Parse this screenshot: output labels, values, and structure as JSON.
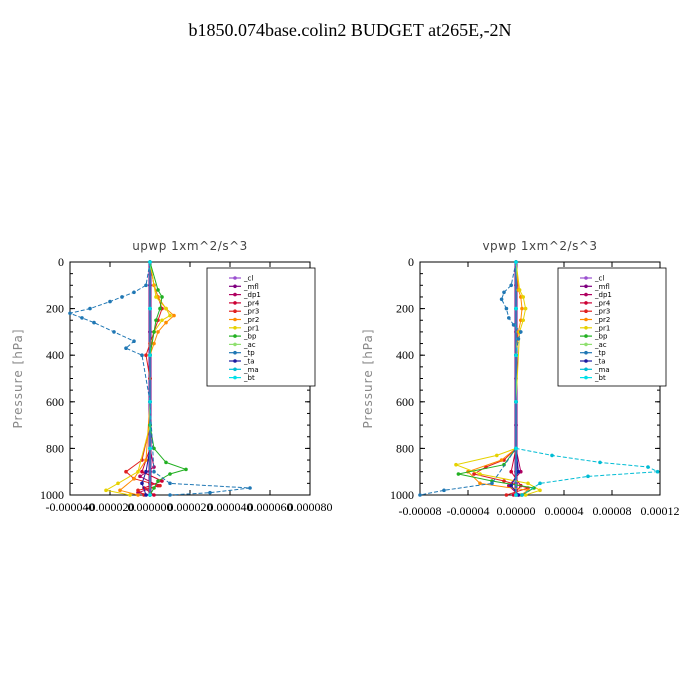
{
  "title": "b1850.074base.colin2  BUDGET at265E,-2N",
  "chart_data": [
    {
      "type": "line",
      "title": "upwp   1xm^2/s^3",
      "ylabel": "Pressure [hPa]",
      "xlabel": "",
      "xlim": [
        -4e-05,
        8e-05
      ],
      "ylim": [
        1000,
        0
      ],
      "xticks": [
        -4e-05,
        -2e-05,
        0.0,
        2e-05,
        4e-05,
        6e-05,
        8e-05
      ],
      "xtick_labels": [
        "-0.000040",
        "-0.000020",
        "0.000000",
        "0.000020",
        "0.000040",
        "0.000060",
        "0.000080"
      ],
      "yticks": [
        0,
        200,
        400,
        600,
        800,
        1000
      ],
      "ytick_labels": [
        "0",
        "200",
        "400",
        "600",
        "800",
        "1000"
      ],
      "legend_position": "upper-right",
      "series": [
        {
          "name": "_cl",
          "color": "#9a4fd0",
          "marker": "+",
          "y": [
            0,
            100,
            200,
            300,
            400,
            500,
            600,
            700,
            800,
            900,
            950,
            1000
          ],
          "x": [
            0,
            0,
            0,
            0,
            0,
            0,
            0,
            0,
            0,
            0,
            0,
            0
          ]
        },
        {
          "name": "_mfl",
          "color": "#800080",
          "marker": "◆",
          "y": [
            0,
            100,
            200,
            300,
            400,
            500,
            600,
            700,
            800,
            900,
            950,
            1000
          ],
          "x": [
            0,
            0,
            0,
            0,
            0,
            0,
            0,
            0,
            0,
            0,
            0,
            0
          ]
        },
        {
          "name": "_dp1",
          "color": "#b00060",
          "marker": "◆",
          "y": [
            0,
            200,
            400,
            600,
            800,
            880,
            920,
            960,
            990,
            1000
          ],
          "x": [
            0,
            0,
            0,
            0,
            0,
            2e-06,
            -5e-06,
            4e-06,
            -6e-06,
            0
          ]
        },
        {
          "name": "_pr4",
          "color": "#cc0033",
          "marker": "◆",
          "y": [
            0,
            200,
            400,
            600,
            800,
            900,
            940,
            970,
            1000
          ],
          "x": [
            0,
            0,
            0,
            0,
            0,
            -4e-06,
            6e-06,
            -3e-06,
            2e-06
          ]
        },
        {
          "name": "_pr3",
          "color": "#e02020",
          "marker": "✕",
          "y": [
            0,
            100,
            150,
            200,
            250,
            300,
            350,
            400,
            500,
            700,
            850,
            900,
            930,
            960,
            980,
            1000
          ],
          "x": [
            0,
            2e-06,
            4e-06,
            6e-06,
            4e-06,
            2e-06,
            0,
            -2e-06,
            0,
            0,
            -4e-06,
            -1.2e-05,
            -8e-06,
            5e-06,
            -6e-06,
            -3e-06
          ]
        },
        {
          "name": "_pr2",
          "color": "#ff8c00",
          "marker": "△",
          "y": [
            0,
            100,
            150,
            200,
            230,
            260,
            300,
            350,
            400,
            600,
            850,
            930,
            980,
            1000
          ],
          "x": [
            0,
            2e-06,
            4e-06,
            8e-06,
            1.2e-05,
            8e-06,
            4e-06,
            2e-06,
            0,
            0,
            -2e-06,
            -8e-06,
            -1.5e-05,
            -6e-06
          ]
        },
        {
          "name": "_pr1",
          "color": "#e6d200",
          "marker": "✕",
          "y": [
            0,
            150,
            200,
            230,
            250,
            300,
            400,
            700,
            900,
            950,
            980,
            1000
          ],
          "x": [
            0,
            3e-06,
            8e-06,
            1e-05,
            6e-06,
            2e-06,
            0,
            0,
            -6e-06,
            -1.6e-05,
            -2.2e-05,
            -1e-05
          ]
        },
        {
          "name": "_bp",
          "color": "#22b022",
          "marker": "✕",
          "y": [
            0,
            120,
            150,
            200,
            250,
            300,
            400,
            700,
            800,
            860,
            890,
            910,
            940,
            970,
            1000
          ],
          "x": [
            0,
            4e-06,
            6e-06,
            5e-06,
            3e-06,
            2e-06,
            0,
            0,
            2e-06,
            8e-06,
            1.8e-05,
            1e-05,
            4e-06,
            2e-06,
            0
          ]
        },
        {
          "name": "_ac",
          "color": "#90e070",
          "marker": "◆",
          "y": [
            0,
            200,
            400,
            600,
            800,
            1000
          ],
          "x": [
            0,
            0,
            0,
            0,
            0,
            0
          ]
        },
        {
          "name": "_tp",
          "color": "#1f77b4",
          "marker": "✕",
          "y": [
            0,
            100,
            130,
            150,
            170,
            200,
            220,
            240,
            260,
            300,
            340,
            370,
            400,
            600,
            900,
            950,
            970,
            990,
            1000
          ],
          "x": [
            0,
            -2e-06,
            -8e-06,
            -1.4e-05,
            -2e-05,
            -3e-05,
            -4e-05,
            -3.4e-05,
            -2.8e-05,
            -1.8e-05,
            -8e-06,
            -1.2e-05,
            -4e-06,
            0,
            2e-06,
            1e-05,
            5e-05,
            3e-05,
            1e-05
          ]
        },
        {
          "name": "_ta",
          "color": "#1a1aa0",
          "marker": "+",
          "y": [
            0,
            200,
            400,
            600,
            800,
            900,
            950,
            1000
          ],
          "x": [
            0,
            0,
            0,
            0,
            0,
            -2e-06,
            -4e-06,
            -2e-06
          ]
        },
        {
          "name": "_ma",
          "color": "#00bcd4",
          "marker": "–",
          "y": [
            0,
            200,
            400,
            600,
            800,
            1000
          ],
          "x": [
            0,
            0,
            0,
            0,
            0,
            0
          ]
        },
        {
          "name": "_bt",
          "color": "#00e0e8",
          "marker": "●",
          "y": [
            0,
            200,
            400,
            600,
            800,
            1000
          ],
          "x": [
            0,
            0,
            0,
            0,
            0,
            0
          ]
        }
      ]
    },
    {
      "type": "line",
      "title": "vpwp   1xm^2/s^3",
      "ylabel": "Pressure [hPa]",
      "xlabel": "",
      "xlim": [
        -8e-05,
        0.00012
      ],
      "ylim": [
        1000,
        0
      ],
      "xticks": [
        -8e-05,
        -4e-05,
        0.0,
        4e-05,
        8e-05,
        0.00012
      ],
      "xtick_labels": [
        "-0.00008",
        "-0.00004",
        "0.00000",
        "0.00004",
        "0.00008",
        "0.00012"
      ],
      "yticks": [
        0,
        200,
        400,
        600,
        800,
        1000
      ],
      "ytick_labels": [
        "0",
        "200",
        "400",
        "600",
        "800",
        "1000"
      ],
      "legend_position": "upper-right",
      "series": [
        {
          "name": "_cl",
          "color": "#9a4fd0",
          "marker": "+",
          "y": [
            0,
            200,
            400,
            600,
            800,
            1000
          ],
          "x": [
            0,
            0,
            0,
            0,
            0,
            0
          ]
        },
        {
          "name": "_mfl",
          "color": "#800080",
          "marker": "◆",
          "y": [
            0,
            100,
            200,
            300,
            400,
            500,
            600,
            700,
            800,
            900,
            950,
            1000
          ],
          "x": [
            0,
            0,
            0,
            0,
            0,
            0,
            0,
            0,
            0,
            0,
            0,
            0
          ]
        },
        {
          "name": "_dp1",
          "color": "#b00060",
          "marker": "◆",
          "y": [
            0,
            200,
            400,
            600,
            800,
            900,
            960,
            1000
          ],
          "x": [
            0,
            0,
            0,
            0,
            0,
            4e-06,
            -6e-06,
            2e-06
          ]
        },
        {
          "name": "_pr4",
          "color": "#cc0033",
          "marker": "◆",
          "y": [
            0,
            200,
            400,
            600,
            800,
            900,
            960,
            1000
          ],
          "x": [
            0,
            0,
            0,
            0,
            0,
            -4e-06,
            4e-06,
            -2e-06
          ]
        },
        {
          "name": "_pr3",
          "color": "#e02020",
          "marker": "✕",
          "y": [
            0,
            200,
            400,
            600,
            800,
            850,
            880,
            910,
            940,
            970,
            1000
          ],
          "x": [
            0,
            0,
            0,
            0,
            0,
            -1e-05,
            -2.5e-05,
            -3.5e-05,
            -1e-05,
            1e-05,
            -8e-06
          ]
        },
        {
          "name": "_pr2",
          "color": "#ff8c00",
          "marker": "△",
          "y": [
            0,
            120,
            150,
            200,
            250,
            300,
            400,
            600,
            800,
            850,
            900,
            950,
            980,
            1000
          ],
          "x": [
            0,
            2e-06,
            4e-06,
            5e-06,
            4e-06,
            2e-06,
            0,
            0,
            0,
            -1.2e-05,
            -4e-05,
            -3e-05,
            1e-05,
            4e-06
          ]
        },
        {
          "name": "_pr1",
          "color": "#e6d200",
          "marker": "✕",
          "y": [
            0,
            120,
            150,
            200,
            250,
            300,
            600,
            800,
            830,
            870,
            910,
            950,
            980,
            1000
          ],
          "x": [
            0,
            3e-06,
            6e-06,
            8e-06,
            6e-06,
            3e-06,
            0,
            0,
            -1.6e-05,
            -5e-05,
            -3e-05,
            1e-05,
            2e-05,
            8e-06
          ]
        },
        {
          "name": "_bp",
          "color": "#22b022",
          "marker": "✕",
          "y": [
            0,
            200,
            400,
            600,
            800,
            870,
            910,
            940,
            970,
            1000
          ],
          "x": [
            0,
            0,
            0,
            0,
            0,
            -1e-05,
            -4.8e-05,
            -2e-05,
            1.5e-05,
            5e-06
          ]
        },
        {
          "name": "_ac",
          "color": "#90e070",
          "marker": "◆",
          "y": [
            0,
            200,
            400,
            600,
            800,
            1000
          ],
          "x": [
            0,
            0,
            0,
            0,
            0,
            0
          ]
        },
        {
          "name": "_tp",
          "color": "#1f77b4",
          "marker": "✕",
          "y": [
            0,
            100,
            130,
            160,
            200,
            240,
            270,
            300,
            330,
            400,
            600,
            800,
            950,
            980,
            1000
          ],
          "x": [
            0,
            -4e-06,
            -1e-05,
            -1.2e-05,
            -8e-06,
            -6e-06,
            -2e-06,
            4e-06,
            2e-06,
            0,
            0,
            0,
            -2e-05,
            -6e-05,
            -8e-05
          ]
        },
        {
          "name": "_ta",
          "color": "#1a1aa0",
          "marker": "+",
          "y": [
            0,
            200,
            400,
            600,
            800,
            900,
            960,
            1000
          ],
          "x": [
            0,
            0,
            0,
            0,
            0,
            2e-06,
            -4e-06,
            2e-06
          ]
        },
        {
          "name": "_ma",
          "color": "#00bcd4",
          "marker": "–",
          "y": [
            0,
            200,
            400,
            600,
            800,
            830,
            860,
            880,
            900,
            920,
            950,
            1000
          ],
          "x": [
            0,
            0,
            0,
            0,
            0,
            3e-05,
            7e-05,
            0.00011,
            0.000118,
            6e-05,
            2e-05,
            5e-06
          ]
        },
        {
          "name": "_bt",
          "color": "#00e0e8",
          "marker": "●",
          "y": [
            0,
            200,
            400,
            600,
            800,
            1000
          ],
          "x": [
            0,
            0,
            0,
            0,
            0,
            0
          ]
        }
      ]
    }
  ]
}
